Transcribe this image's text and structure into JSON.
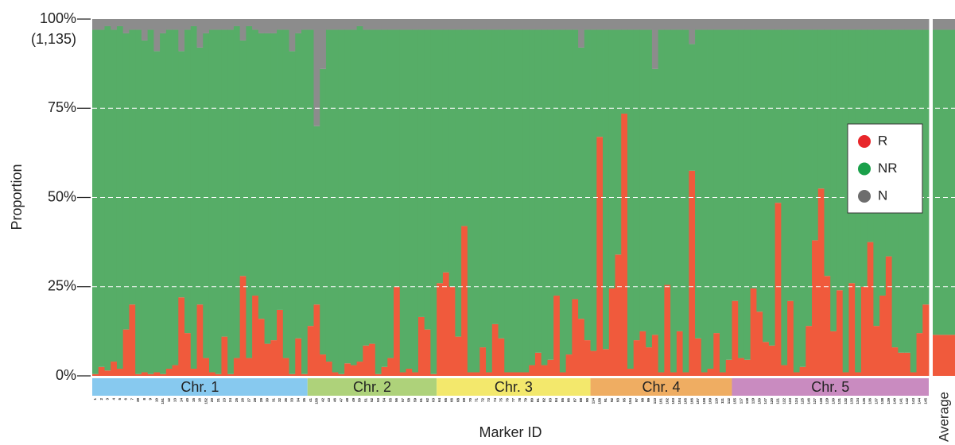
{
  "chart_data": {
    "type": "stacked_bar",
    "y_label": "Proportion",
    "x_label": "Marker ID",
    "ylim": [
      0,
      100
    ],
    "yticks": [
      {
        "value": 0,
        "label": "0%"
      },
      {
        "value": 25,
        "label": "25%"
      },
      {
        "value": 50,
        "label": "50%"
      },
      {
        "value": 75,
        "label": "75%"
      },
      {
        "value": 100,
        "label": "100%"
      }
    ],
    "ytick_note": "(1,135)",
    "grid": true,
    "legend_position": "right",
    "categories": [
      "1",
      "2",
      "3",
      "4",
      "5",
      "6",
      "7",
      "39",
      "8",
      "9",
      "10",
      "151",
      "12",
      "13",
      "14",
      "40",
      "15",
      "16",
      "152",
      "20",
      "21",
      "23",
      "24",
      "25",
      "26",
      "27",
      "28",
      "29",
      "30",
      "31",
      "32",
      "36",
      "33",
      "34",
      "35",
      "41",
      "156",
      "42",
      "43",
      "46",
      "47",
      "48",
      "49",
      "50",
      "51",
      "52",
      "53",
      "54",
      "55",
      "56",
      "57",
      "58",
      "59",
      "61",
      "62",
      "63",
      "64",
      "65",
      "66",
      "68",
      "69",
      "70",
      "71",
      "72",
      "73",
      "74",
      "75",
      "76",
      "77",
      "78",
      "79",
      "80",
      "81",
      "82",
      "83",
      "84",
      "85",
      "86",
      "87",
      "88",
      "90",
      "114",
      "158",
      "91",
      "92",
      "93",
      "95",
      "154",
      "97",
      "98",
      "99",
      "113",
      "101",
      "102",
      "103",
      "104",
      "105",
      "106",
      "107",
      "108",
      "109",
      "110",
      "111",
      "112",
      "155",
      "117",
      "118",
      "119",
      "150",
      "147",
      "120",
      "121",
      "122",
      "123",
      "124",
      "125",
      "146",
      "127",
      "128",
      "129",
      "130",
      "131",
      "132",
      "133",
      "134",
      "135",
      "136",
      "137",
      "138",
      "139",
      "140",
      "141",
      "142",
      "143",
      "144",
      "145"
    ],
    "chromosomes": [
      {
        "label": "Chr. 1",
        "color": "#87c9ef",
        "n_markers": 35
      },
      {
        "label": "Chr. 2",
        "color": "#aed27a",
        "n_markers": 21
      },
      {
        "label": "Chr. 3",
        "color": "#f3e86c",
        "n_markers": 25
      },
      {
        "label": "Chr. 4",
        "color": "#efad62",
        "n_markers": 23
      },
      {
        "label": "Chr. 5",
        "color": "#c98bc0",
        "n_markers": 32
      }
    ],
    "series": [
      {
        "name": "R",
        "color": "#f05a3c",
        "legend_color": "#e8262a",
        "values": [
          0.5,
          2.5,
          1.5,
          4,
          2,
          13,
          20,
          0.5,
          1,
          0.5,
          1,
          0.5,
          2,
          3,
          22,
          12,
          2,
          20,
          5,
          1,
          0.5,
          11,
          0.5,
          5,
          28,
          5,
          22.5,
          16,
          9,
          10,
          18.5,
          5,
          0.5,
          10.5,
          0.5,
          14,
          20,
          6,
          4,
          1,
          0.5,
          3.5,
          3,
          4,
          8.5,
          9,
          0.5,
          2.5,
          5,
          25,
          1,
          2,
          1,
          16.5,
          13,
          0.5,
          26,
          29,
          25,
          11,
          42,
          1,
          1,
          8,
          1,
          14.5,
          10.5,
          1,
          1,
          1,
          1,
          3,
          6.5,
          3,
          4.5,
          22.5,
          1,
          6,
          21.5,
          16,
          10,
          7,
          67,
          7.5,
          24.5,
          34,
          73.5,
          2,
          10,
          12.5,
          8,
          11.5,
          1,
          25.5,
          1,
          12.5,
          1,
          57.5,
          10.5,
          1,
          2,
          12,
          1,
          4.5,
          21,
          5,
          4.5,
          24.5,
          18,
          9.5,
          8.5,
          48.5,
          3,
          21,
          1,
          2.5,
          14,
          38,
          52.5,
          28,
          12.5,
          24,
          1,
          26,
          1,
          25,
          37.5,
          14,
          22.5,
          33.5,
          8,
          6.5,
          6.5,
          1,
          12,
          20
        ]
      },
      {
        "name": "NR",
        "color": "#56ad67",
        "legend_color": "#1aa04a",
        "values": [
          96.5,
          94.5,
          96.5,
          93,
          96,
          83,
          77,
          96.5,
          93,
          96.5,
          90,
          95.5,
          95,
          94,
          69,
          85,
          96,
          72,
          91,
          96,
          96.5,
          86,
          96.5,
          93,
          66,
          93,
          74.5,
          80,
          87,
          86,
          78.5,
          92,
          90.5,
          85.5,
          96.5,
          83,
          50,
          80,
          93,
          96,
          96.5,
          93.5,
          94,
          94,
          88.5,
          88,
          96.5,
          94.5,
          92,
          72,
          96,
          95,
          96,
          80.5,
          84,
          96.5,
          71,
          68,
          72,
          86,
          55,
          96,
          96,
          89,
          96,
          82.5,
          86.5,
          96,
          96,
          96,
          96,
          94,
          90.5,
          94,
          92.5,
          74.5,
          96,
          91,
          75.5,
          76,
          87,
          90,
          30,
          89.5,
          72.5,
          63,
          23.5,
          95,
          87,
          84.5,
          89,
          74.5,
          96,
          71.5,
          96,
          84.5,
          96,
          35.5,
          86.5,
          96,
          95,
          85,
          96,
          92.5,
          76,
          92,
          92.5,
          72.5,
          79,
          87.5,
          88.5,
          48.5,
          94,
          76,
          96,
          94.5,
          83,
          59,
          44.5,
          69,
          84.5,
          73,
          96,
          71,
          96,
          72,
          59.5,
          83,
          74.5,
          63.5,
          89,
          90.5,
          90.5,
          96,
          85,
          77
        ]
      },
      {
        "name": "N",
        "color": "#8c8c8c",
        "legend_color": "#6d6d6d",
        "values": [
          3,
          3,
          2,
          3,
          2,
          4,
          3,
          3,
          6,
          3,
          9,
          4,
          3,
          3,
          9,
          3,
          2,
          8,
          4,
          3,
          3,
          3,
          3,
          2,
          6,
          2,
          3,
          4,
          4,
          4,
          3,
          3,
          9,
          4,
          3,
          3,
          30,
          14,
          3,
          3,
          3,
          3,
          3,
          2,
          3,
          3,
          3,
          3,
          3,
          3,
          3,
          3,
          3,
          3,
          3,
          3,
          3,
          3,
          3,
          3,
          3,
          3,
          3,
          3,
          3,
          3,
          3,
          3,
          3,
          3,
          3,
          3,
          3,
          3,
          3,
          3,
          3,
          3,
          3,
          8,
          3,
          3,
          3,
          3,
          3,
          3,
          3,
          3,
          3,
          3,
          3,
          14,
          3,
          3,
          3,
          3,
          3,
          7,
          3,
          3,
          3,
          3,
          3,
          3,
          3,
          3,
          3,
          3,
          3,
          3,
          3,
          3,
          3,
          3,
          3,
          3,
          3,
          3,
          3,
          3,
          3,
          3,
          3,
          3,
          3,
          3,
          3,
          3,
          3,
          3,
          3,
          3,
          3,
          3,
          3,
          3
        ]
      }
    ],
    "average": {
      "label": "Average",
      "values": [
        11.5,
        85.5,
        3
      ]
    }
  }
}
